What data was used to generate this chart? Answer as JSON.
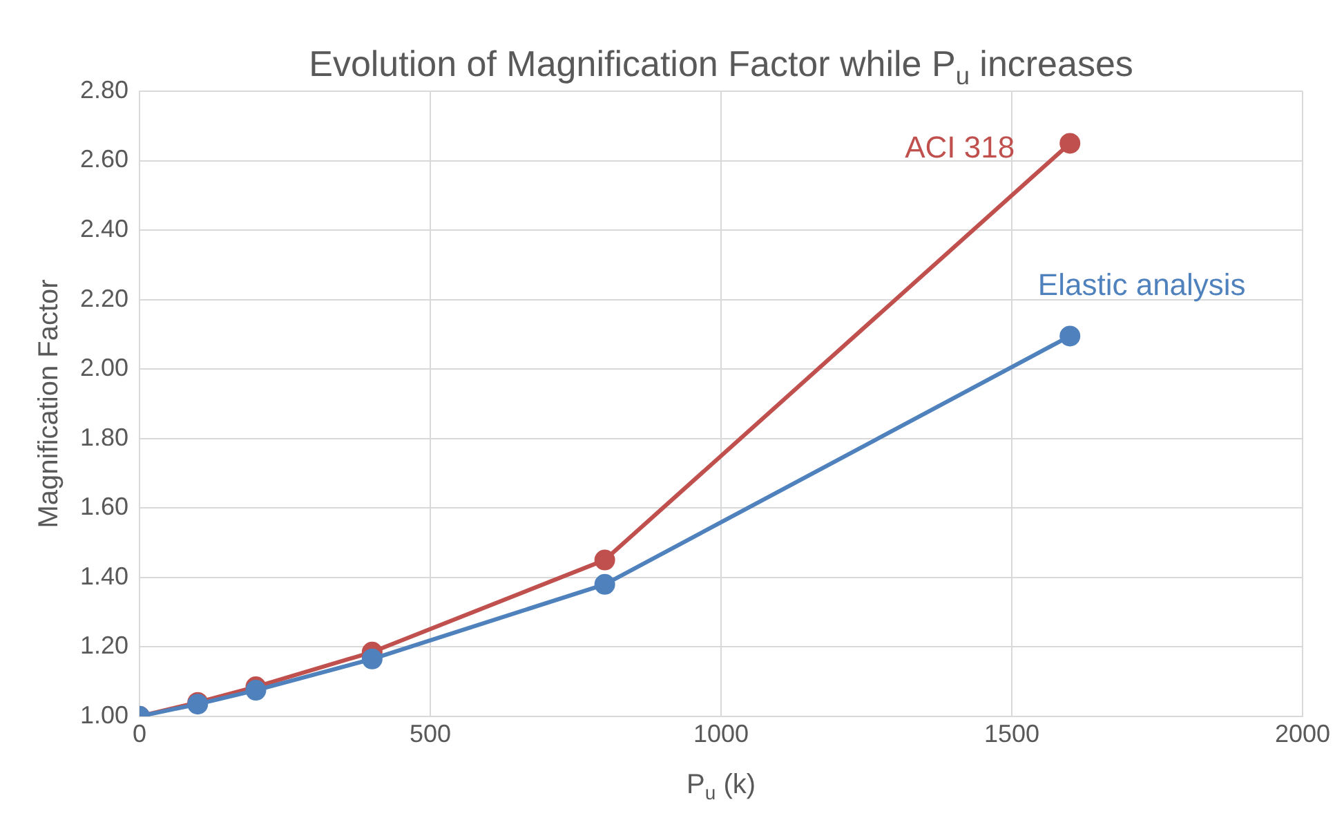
{
  "chart_data": {
    "type": "line",
    "title": "Evolution of Magnification Factor while P$_{u}$ increases",
    "xlabel": "P$_{u}$ (k)",
    "ylabel": "Magnification Factor",
    "x": [
      0,
      100,
      200,
      400,
      800,
      1600
    ],
    "series": [
      {
        "name": "ACI 318",
        "color": "#c0504d",
        "values": [
          1.0,
          1.04,
          1.085,
          1.185,
          1.45,
          2.65
        ]
      },
      {
        "name": "Elastic analysis",
        "color": "#4f81bd",
        "values": [
          1.0,
          1.035,
          1.075,
          1.165,
          1.38,
          2.095
        ]
      }
    ],
    "xlim": [
      0,
      2000
    ],
    "xticks": [
      0,
      500,
      1000,
      1500,
      2000
    ],
    "ylim": [
      1,
      2.8
    ],
    "yticks": [
      {
        "value": 1,
        "label": "1.00"
      },
      {
        "value": 1.2,
        "label": "1.20"
      },
      {
        "value": 1.4,
        "label": "1.40"
      },
      {
        "value": 1.6,
        "label": "1.60"
      },
      {
        "value": 1.8,
        "label": "1.80"
      },
      {
        "value": 2,
        "label": "2.00"
      },
      {
        "value": 2.2,
        "label": "2.20"
      },
      {
        "value": 2.4,
        "label": "2.40"
      },
      {
        "value": 2.6,
        "label": "2.60"
      },
      {
        "value": 2.8,
        "label": "2.80"
      }
    ],
    "grid": true,
    "legend": false,
    "marker": "circle",
    "line_style": "solid"
  }
}
